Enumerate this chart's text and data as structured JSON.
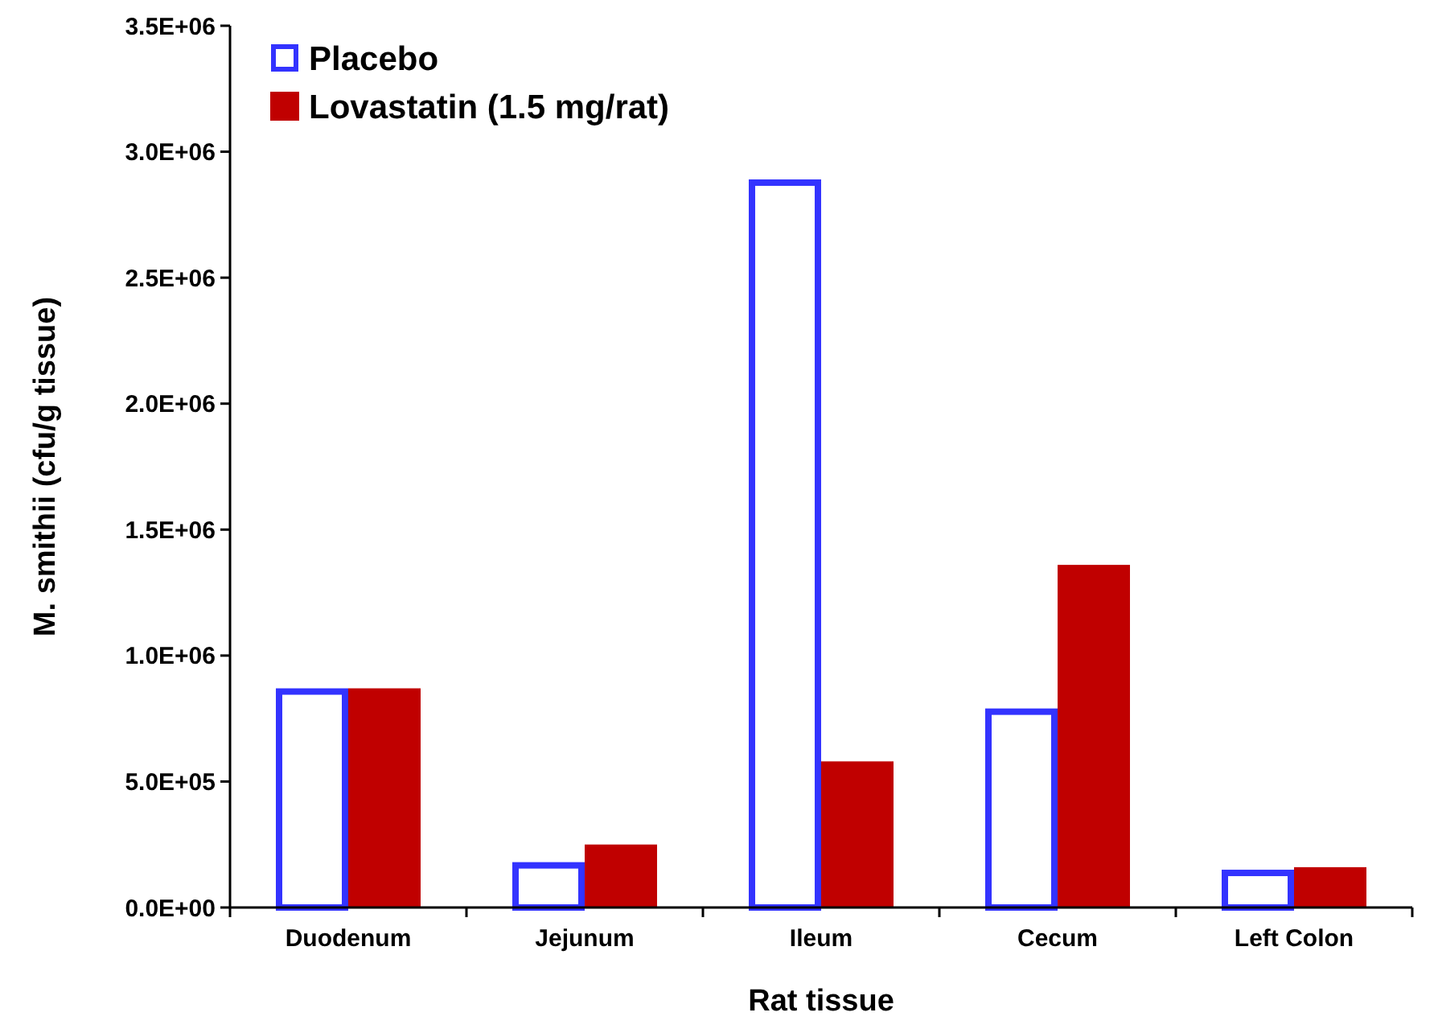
{
  "chart_data": {
    "type": "bar",
    "xlabel": "Rat tissue",
    "ylabel": "M. smithii (cfu/g tissue)",
    "categories": [
      "Duodenum",
      "Jejunum",
      "Ileum",
      "Cecum",
      "Left Colon"
    ],
    "series": [
      {
        "name": "Placebo",
        "color": "#3333ff",
        "values": [
          870000,
          180000,
          2890000,
          790000,
          150000
        ]
      },
      {
        "name": "Lovastatin (1.5 mg/rat)",
        "color": "#c00000",
        "values": [
          870000,
          250000,
          580000,
          1360000,
          160000
        ]
      }
    ],
    "ylim": [
      0,
      3500000
    ],
    "yticks": [
      {
        "value": 0,
        "label": "0.0E+00"
      },
      {
        "value": 500000,
        "label": "5.0E+05"
      },
      {
        "value": 1000000,
        "label": "1.0E+06"
      },
      {
        "value": 1500000,
        "label": "1.5E+06"
      },
      {
        "value": 2000000,
        "label": "2.0E+06"
      },
      {
        "value": 2500000,
        "label": "2.5E+06"
      },
      {
        "value": 3000000,
        "label": "3.0E+06"
      },
      {
        "value": 3500000,
        "label": "3.5E+06"
      }
    ],
    "grid": false,
    "legend": "top left"
  }
}
